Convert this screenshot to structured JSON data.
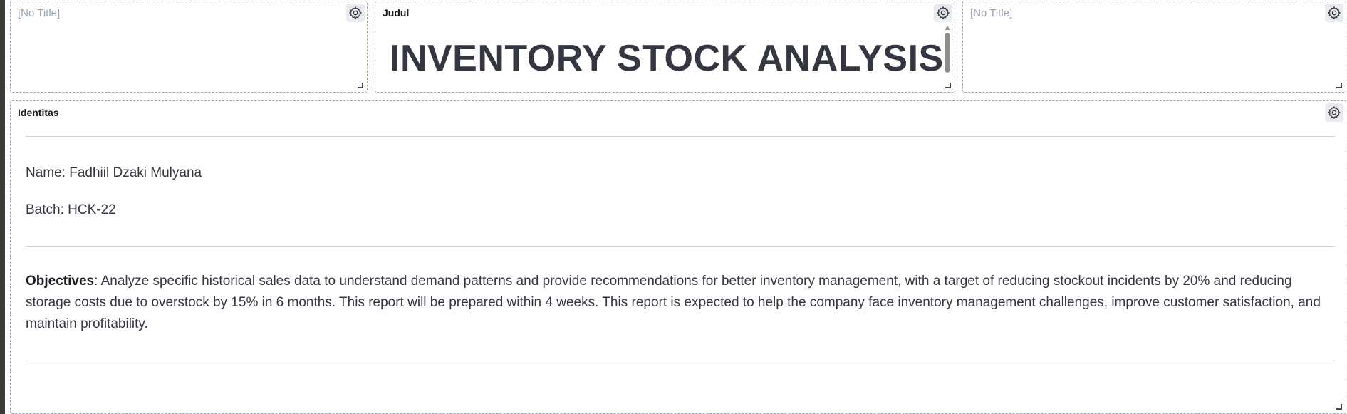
{
  "panels": {
    "left": {
      "title": "[No Title]"
    },
    "middle": {
      "title": "Judul",
      "heading": "INVENTORY STOCK ANALYSIS"
    },
    "right": {
      "title": "[No Title]"
    },
    "identitas": {
      "title": "Identitas",
      "name_line": "Name: Fadhiil Dzaki Mulyana",
      "batch_line": "Batch: HCK-22",
      "objectives_label": "Objectives",
      "objectives_text": ": Analyze specific historical sales data to understand demand patterns and provide recommendations for better inventory management, with a target of reducing stockout incidents by 20% and reducing storage costs due to overstock by 15% in 6 months. This report will be prepared within 4 weeks. This report is expected to help the company face inventory management challenges, improve customer satisfaction, and maintain profitability."
    }
  },
  "icons": {
    "settings": "gear-icon",
    "resize": "resize-handle-icon"
  }
}
